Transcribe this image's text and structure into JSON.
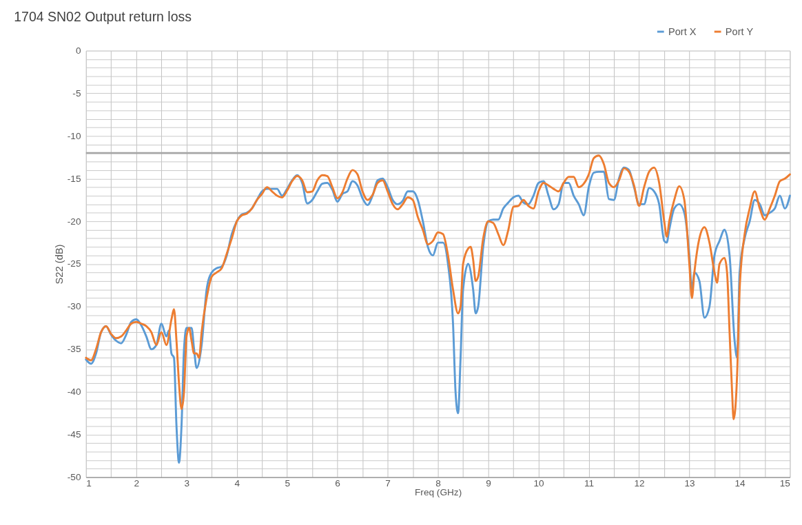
{
  "chart_data": {
    "type": "line",
    "title": "1704 SN02 Output return loss",
    "xlabel": "Freq (GHz)",
    "ylabel": "S22 (dB)",
    "xlim": [
      1,
      15
    ],
    "ylim": [
      -50,
      0
    ],
    "xticks": [
      1,
      {
        "value": 1.5,
        "label": null
      },
      2,
      {
        "value": 2.5,
        "label": null
      },
      3,
      {
        "value": 3.5,
        "label": null
      },
      4,
      {
        "value": 4.5,
        "label": null
      },
      5,
      {
        "value": 5.5,
        "label": null
      },
      6,
      {
        "value": 6.5,
        "label": null
      },
      7,
      {
        "value": 7.5,
        "label": null
      },
      8,
      {
        "value": 8.5,
        "label": null
      },
      9,
      {
        "value": 9.5,
        "label": null
      },
      10,
      {
        "value": 10.5,
        "label": null
      },
      11,
      {
        "value": 11.5,
        "label": null
      },
      12,
      {
        "value": 12.5,
        "label": null
      },
      13,
      {
        "value": 13.5,
        "label": null
      },
      14,
      {
        "value": 14.5,
        "label": null
      },
      15
    ],
    "yticks": [
      -50,
      {
        "value": -49,
        "label": null
      },
      {
        "value": -48,
        "label": null
      },
      {
        "value": -47,
        "label": null
      },
      {
        "value": -46,
        "label": null
      },
      -45,
      {
        "value": -44,
        "label": null
      },
      {
        "value": -43,
        "label": null
      },
      {
        "value": -42,
        "label": null
      },
      {
        "value": -41,
        "label": null
      },
      -40,
      {
        "value": -39,
        "label": null
      },
      {
        "value": -38,
        "label": null
      },
      {
        "value": -37,
        "label": null
      },
      {
        "value": -36,
        "label": null
      },
      -35,
      {
        "value": -34,
        "label": null
      },
      {
        "value": -33,
        "label": null
      },
      {
        "value": -32,
        "label": null
      },
      {
        "value": -31,
        "label": null
      },
      -30,
      {
        "value": -29,
        "label": null
      },
      {
        "value": -28,
        "label": null
      },
      {
        "value": -27,
        "label": null
      },
      {
        "value": -26,
        "label": null
      },
      -25,
      {
        "value": -24,
        "label": null
      },
      {
        "value": -23,
        "label": null
      },
      {
        "value": -22,
        "label": null
      },
      {
        "value": -21,
        "label": null
      },
      -20,
      {
        "value": -19,
        "label": null
      },
      {
        "value": -18,
        "label": null
      },
      {
        "value": -17,
        "label": null
      },
      {
        "value": -16,
        "label": null
      },
      -15,
      {
        "value": -14,
        "label": null
      },
      {
        "value": -13,
        "label": null
      },
      {
        "value": -12,
        "label": null
      },
      {
        "value": -11,
        "label": null
      },
      -10,
      {
        "value": -9,
        "label": null
      },
      {
        "value": -8,
        "label": null
      },
      {
        "value": -7,
        "label": null
      },
      {
        "value": -6,
        "label": null
      },
      -5,
      {
        "value": -4,
        "label": null
      },
      {
        "value": -3,
        "label": null
      },
      {
        "value": -2,
        "label": null
      },
      {
        "value": -1,
        "label": null
      },
      0
    ],
    "grid": true,
    "legend": "top right",
    "marker": "none",
    "line_style": "solid",
    "ref_lines": [
      {
        "axis": "y",
        "value": -12,
        "label": null,
        "color": "#a6a6a6"
      }
    ],
    "series": [
      {
        "name": "Port X",
        "color": "#5b9bd5",
        "x": [
          1.0,
          1.1,
          1.2,
          1.3,
          1.4,
          1.5,
          1.6,
          1.7,
          1.8,
          1.9,
          2.0,
          2.1,
          2.2,
          2.3,
          2.4,
          2.5,
          2.6,
          2.65,
          2.7,
          2.75,
          2.8,
          2.85,
          2.9,
          2.95,
          3.0,
          3.1,
          3.15,
          3.2,
          3.3,
          3.4,
          3.5,
          3.6,
          3.7,
          3.8,
          3.9,
          4.0,
          4.1,
          4.2,
          4.3,
          4.4,
          4.5,
          4.6,
          4.7,
          4.8,
          4.9,
          5.0,
          5.1,
          5.2,
          5.3,
          5.4,
          5.5,
          5.6,
          5.7,
          5.8,
          5.9,
          6.0,
          6.1,
          6.2,
          6.3,
          6.4,
          6.5,
          6.6,
          6.7,
          6.8,
          6.9,
          7.0,
          7.1,
          7.2,
          7.3,
          7.4,
          7.5,
          7.6,
          7.7,
          7.8,
          7.9,
          8.0,
          8.1,
          8.2,
          8.3,
          8.35,
          8.4,
          8.45,
          8.5,
          8.6,
          8.7,
          8.75,
          8.8,
          8.9,
          9.0,
          9.1,
          9.2,
          9.3,
          9.4,
          9.5,
          9.6,
          9.7,
          9.8,
          9.9,
          10.0,
          10.1,
          10.2,
          10.3,
          10.4,
          10.5,
          10.6,
          10.7,
          10.8,
          10.9,
          11.0,
          11.1,
          11.2,
          11.3,
          11.4,
          11.5,
          11.6,
          11.7,
          11.8,
          11.9,
          12.0,
          12.1,
          12.2,
          12.3,
          12.4,
          12.5,
          12.55,
          12.6,
          12.7,
          12.8,
          12.9,
          13.0,
          13.05,
          13.1,
          13.2,
          13.3,
          13.4,
          13.5,
          13.6,
          13.7,
          13.8,
          13.9,
          13.95,
          14.0,
          14.1,
          14.2,
          14.3,
          14.4,
          14.5,
          14.6,
          14.7,
          14.8,
          14.9,
          15.0
        ],
        "values": [
          -36.2,
          -36.7,
          -35.5,
          -33,
          -32.3,
          -33.3,
          -34,
          -34.3,
          -33.3,
          -31.8,
          -31.5,
          -32.2,
          -33.5,
          -35,
          -34.5,
          -32,
          -33.5,
          -32.8,
          -35.5,
          -36,
          -44,
          -48.3,
          -44,
          -35,
          -32.5,
          -32.5,
          -35,
          -37.2,
          -34.5,
          -28,
          -26,
          -25.5,
          -25.3,
          -24,
          -21.5,
          -20,
          -19.2,
          -19,
          -18.5,
          -17.5,
          -16.5,
          -16.2,
          -16.2,
          -16.2,
          -17,
          -16.2,
          -15.2,
          -14.6,
          -15.5,
          -17.9,
          -17.5,
          -16.5,
          -15.6,
          -15.5,
          -16.3,
          -17.7,
          -16.8,
          -16.5,
          -15.3,
          -15.8,
          -17.3,
          -18.1,
          -17,
          -15.2,
          -15,
          -16,
          -17.5,
          -18,
          -17.6,
          -16.5,
          -16.5,
          -17.5,
          -20,
          -23,
          -24,
          -22.5,
          -22.5,
          -25,
          -32,
          -40,
          -42.5,
          -36,
          -28,
          -25,
          -28,
          -30.8,
          -30,
          -23,
          -20,
          -19.8,
          -19.8,
          -18.5,
          -17.8,
          -17.2,
          -17,
          -17.8,
          -18,
          -17,
          -15.5,
          -15.3,
          -17,
          -18.6,
          -18,
          -15.5,
          -15.5,
          -17,
          -18,
          -19.3,
          -16,
          -14.3,
          -14.2,
          -14.2,
          -17.4,
          -17.5,
          -15,
          -13.7,
          -14,
          -16,
          -18,
          -18,
          -16.1,
          -16.5,
          -18,
          -22.3,
          -22.5,
          -21,
          -18.5,
          -18,
          -19,
          -24,
          -28,
          -26,
          -27,
          -31.3,
          -30,
          -24,
          -22.3,
          -21,
          -24,
          -34,
          -36,
          -26,
          -22,
          -20,
          -17.5,
          -18,
          -19.3,
          -19,
          -18.5,
          -17,
          -18.5,
          -17
        ]
      },
      {
        "name": "Port Y",
        "color": "#ed7d31",
        "x": [
          1.0,
          1.1,
          1.2,
          1.3,
          1.4,
          1.5,
          1.6,
          1.7,
          1.8,
          1.9,
          2.0,
          2.1,
          2.2,
          2.3,
          2.4,
          2.5,
          2.6,
          2.7,
          2.75,
          2.8,
          2.85,
          2.9,
          2.95,
          3.0,
          3.05,
          3.1,
          3.15,
          3.2,
          3.25,
          3.3,
          3.4,
          3.5,
          3.6,
          3.7,
          3.8,
          3.9,
          4.0,
          4.1,
          4.2,
          4.3,
          4.4,
          4.5,
          4.6,
          4.7,
          4.8,
          4.9,
          5.0,
          5.1,
          5.2,
          5.3,
          5.4,
          5.5,
          5.6,
          5.7,
          5.8,
          5.9,
          6.0,
          6.1,
          6.2,
          6.3,
          6.4,
          6.5,
          6.6,
          6.7,
          6.8,
          6.9,
          7.0,
          7.1,
          7.2,
          7.3,
          7.4,
          7.5,
          7.6,
          7.7,
          7.8,
          7.9,
          8.0,
          8.1,
          8.2,
          8.3,
          8.4,
          8.45,
          8.5,
          8.6,
          8.65,
          8.7,
          8.75,
          8.8,
          8.9,
          9.0,
          9.1,
          9.2,
          9.3,
          9.4,
          9.5,
          9.6,
          9.7,
          9.8,
          9.9,
          10.0,
          10.1,
          10.2,
          10.3,
          10.4,
          10.5,
          10.6,
          10.7,
          10.8,
          10.9,
          11.0,
          11.1,
          11.2,
          11.3,
          11.4,
          11.5,
          11.6,
          11.7,
          11.8,
          11.9,
          12.0,
          12.1,
          12.2,
          12.3,
          12.4,
          12.5,
          12.55,
          12.6,
          12.7,
          12.8,
          12.9,
          13.0,
          13.05,
          13.1,
          13.2,
          13.3,
          13.4,
          13.5,
          13.55,
          13.6,
          13.7,
          13.75,
          13.8,
          13.85,
          13.88,
          13.95,
          14.0,
          14.1,
          14.2,
          14.3,
          14.4,
          14.5,
          14.6,
          14.7,
          14.8,
          14.9,
          15.0
        ],
        "values": [
          -36,
          -36.3,
          -35,
          -33,
          -32.3,
          -33.2,
          -33.7,
          -33.5,
          -32.8,
          -32,
          -31.8,
          -32,
          -32.3,
          -33,
          -34.5,
          -33,
          -34.5,
          -31.5,
          -30.3,
          -34,
          -39,
          -42,
          -40,
          -33.5,
          -32.5,
          -34,
          -35.5,
          -35.5,
          -36,
          -33,
          -29,
          -26.5,
          -26,
          -25.5,
          -23.8,
          -22,
          -20,
          -19.3,
          -19.1,
          -18.5,
          -17.5,
          -16.8,
          -16,
          -16.5,
          -17,
          -17.2,
          -16.4,
          -15.3,
          -14.7,
          -15.2,
          -16.6,
          -16.5,
          -15.2,
          -14.6,
          -14.7,
          -16,
          -17.3,
          -16.6,
          -15,
          -14,
          -14.5,
          -16.5,
          -17.5,
          -16.9,
          -15.5,
          -15.2,
          -16.5,
          -18,
          -18.6,
          -18,
          -17.2,
          -17.5,
          -19.5,
          -21,
          -22.7,
          -22.3,
          -21.3,
          -21.5,
          -24,
          -28,
          -30.8,
          -30,
          -25,
          -23.2,
          -23,
          -24.5,
          -27,
          -26.5,
          -22,
          -20,
          -20.2,
          -21.5,
          -22.8,
          -21,
          -18.3,
          -18.2,
          -17.5,
          -18.2,
          -18.5,
          -16.5,
          -15.5,
          -15.8,
          -16.2,
          -16.5,
          -15.5,
          -14.8,
          -14.8,
          -16,
          -15.6,
          -14.5,
          -12.6,
          -12.3,
          -13.3,
          -15.5,
          -16,
          -15.2,
          -13.8,
          -14.2,
          -15.8,
          -18.2,
          -16,
          -14.2,
          -13.7,
          -15.5,
          -20,
          -21.8,
          -20,
          -17.5,
          -15.9,
          -17.5,
          -25,
          -29,
          -26,
          -22,
          -20.7,
          -22.5,
          -26,
          -27.2,
          -25,
          -24.3,
          -26,
          -33,
          -40,
          -43.2,
          -38,
          -28,
          -21.5,
          -18.5,
          -16.5,
          -18.5,
          -19.8,
          -18.5,
          -17,
          -15.3,
          -15,
          -14.5
        ]
      }
    ]
  }
}
